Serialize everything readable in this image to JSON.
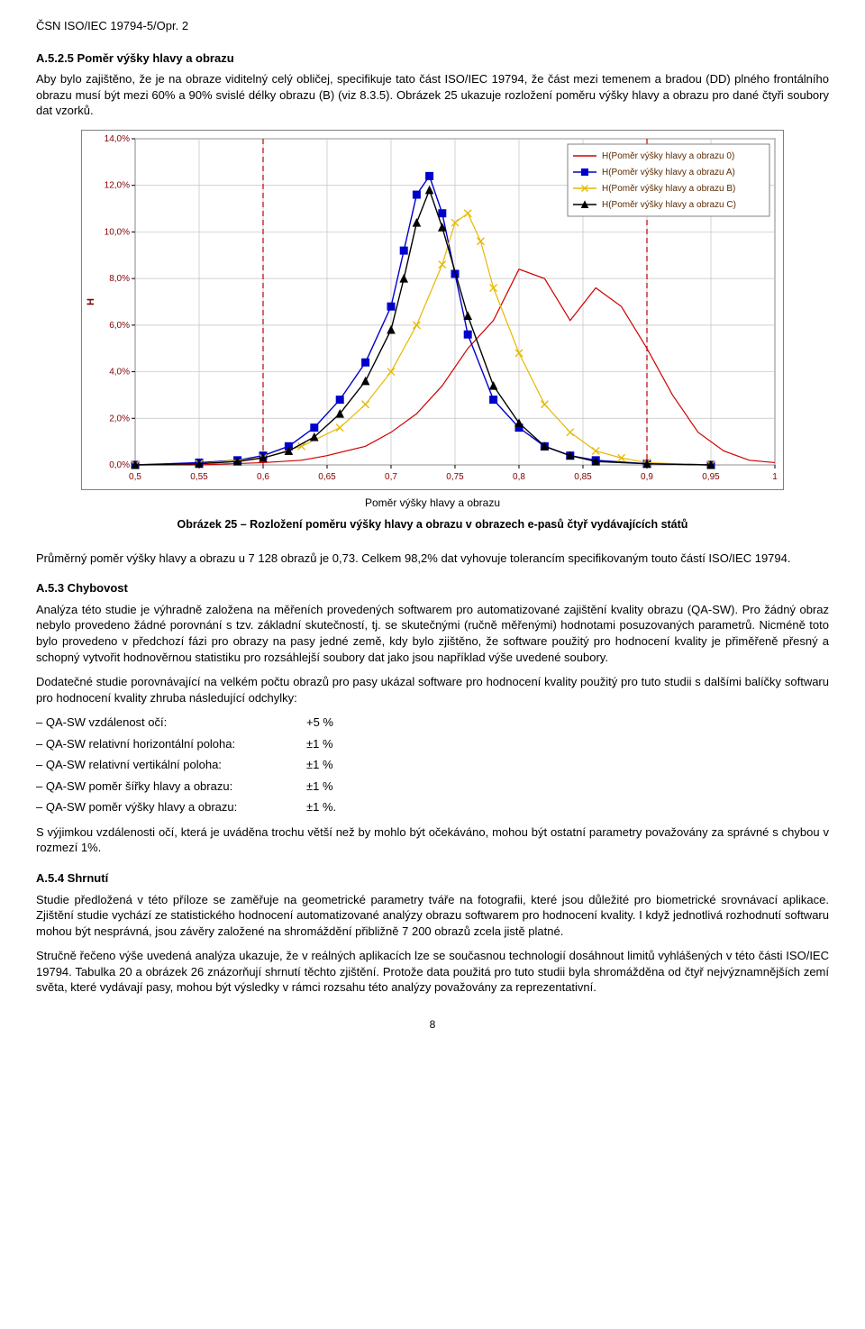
{
  "doc": {
    "header": "ČSN ISO/IEC 19794-5/Opr. 2",
    "page_number": "8"
  },
  "a52": {
    "heading": "A.5.2.5   Poměr výšky hlavy a obrazu",
    "p1": "Aby bylo zajištěno, že je na obraze viditelný celý obličej, specifikuje tato část ISO/IEC 19794, že část mezi temenem a bradou (DD) plného frontálního obrazu musí být mezi 60% a 90% svislé délky obrazu (B) (viz 8.3.5). Obrázek 25 ukazuje rozložení poměru výšky hlavy a obrazu pro dané čtyři soubory dat vzorků."
  },
  "chart": {
    "type": "line",
    "background_color": "#ffffff",
    "outer_border_color": "#808080",
    "grid_color": "#c0c0c0",
    "axis_color": "#000000",
    "xlim": [
      0.5,
      1.0
    ],
    "ylim": [
      0.0,
      14.0
    ],
    "xticks": [
      0.5,
      0.55,
      0.6,
      0.65,
      0.7,
      0.75,
      0.8,
      0.85,
      0.9,
      0.95,
      1.0
    ],
    "xtick_labels": [
      "0,5",
      "0,55",
      "0,6",
      "0,65",
      "0,7",
      "0,75",
      "0,8",
      "0,85",
      "0,9",
      "0,95",
      "1"
    ],
    "yticks": [
      0,
      2,
      4,
      6,
      8,
      10,
      12,
      14
    ],
    "ytick_labels": [
      "0,0%",
      "2,0%",
      "4,0%",
      "6,0%",
      "8,0%",
      "10,0%",
      "12,0%",
      "14,0%"
    ],
    "ylabel": "H",
    "font_size": 10,
    "label_color": "#800000",
    "limit_lines": {
      "color": "#c00000",
      "dash": "6,4",
      "x_positions": [
        0.6,
        0.9
      ]
    },
    "legend": {
      "border_color": "#808080",
      "items": [
        {
          "label": "H(Poměr výšky hlavy a obrazu 0)",
          "color": "#d00000",
          "marker": "none"
        },
        {
          "label": "H(Poměr výšky hlavy a obrazu A)",
          "color": "#0000cc",
          "marker": "square"
        },
        {
          "label": "H(Poměr výšky hlavy a obrazu B)",
          "color": "#e6b800",
          "marker": "x"
        },
        {
          "label": "H(Poměr výšky hlavy a obrazu C)",
          "color": "#000000",
          "marker": "triangle"
        }
      ]
    },
    "series": [
      {
        "name": "0",
        "color": "#d00000",
        "marker": "none",
        "line_width": 1.2,
        "x": [
          0.5,
          0.55,
          0.6,
          0.63,
          0.65,
          0.68,
          0.7,
          0.72,
          0.74,
          0.76,
          0.78,
          0.8,
          0.82,
          0.84,
          0.86,
          0.88,
          0.9,
          0.92,
          0.94,
          0.96,
          0.98,
          1.0
        ],
        "y": [
          0,
          0,
          0.1,
          0.2,
          0.4,
          0.8,
          1.4,
          2.2,
          3.4,
          5.0,
          6.2,
          8.4,
          8.0,
          6.2,
          7.6,
          6.8,
          5.0,
          3.0,
          1.4,
          0.6,
          0.2,
          0.1
        ]
      },
      {
        "name": "A",
        "color": "#0000cc",
        "marker": "square",
        "marker_size": 4,
        "line_width": 1.4,
        "x": [
          0.5,
          0.55,
          0.58,
          0.6,
          0.62,
          0.64,
          0.66,
          0.68,
          0.7,
          0.71,
          0.72,
          0.73,
          0.74,
          0.75,
          0.76,
          0.78,
          0.8,
          0.82,
          0.84,
          0.86,
          0.9,
          0.95
        ],
        "y": [
          0,
          0.1,
          0.2,
          0.4,
          0.8,
          1.6,
          2.8,
          4.4,
          6.8,
          9.2,
          11.6,
          12.4,
          10.8,
          8.2,
          5.6,
          2.8,
          1.6,
          0.8,
          0.4,
          0.2,
          0.05,
          0
        ]
      },
      {
        "name": "B",
        "color": "#e6b800",
        "marker": "x",
        "marker_size": 4,
        "line_width": 1.2,
        "x": [
          0.5,
          0.55,
          0.6,
          0.63,
          0.66,
          0.68,
          0.7,
          0.72,
          0.74,
          0.75,
          0.76,
          0.77,
          0.78,
          0.8,
          0.82,
          0.84,
          0.86,
          0.88,
          0.9,
          0.95
        ],
        "y": [
          0,
          0.05,
          0.3,
          0.8,
          1.6,
          2.6,
          4.0,
          6.0,
          8.6,
          10.4,
          10.8,
          9.6,
          7.6,
          4.8,
          2.6,
          1.4,
          0.6,
          0.3,
          0.1,
          0
        ]
      },
      {
        "name": "C",
        "color": "#000000",
        "marker": "triangle",
        "marker_size": 4,
        "line_width": 1.4,
        "x": [
          0.5,
          0.55,
          0.58,
          0.6,
          0.62,
          0.64,
          0.66,
          0.68,
          0.7,
          0.71,
          0.72,
          0.73,
          0.74,
          0.76,
          0.78,
          0.8,
          0.82,
          0.84,
          0.86,
          0.9,
          0.95
        ],
        "y": [
          0,
          0.05,
          0.15,
          0.3,
          0.6,
          1.2,
          2.2,
          3.6,
          5.8,
          8.0,
          10.4,
          11.8,
          10.2,
          6.4,
          3.4,
          1.8,
          0.8,
          0.4,
          0.15,
          0.05,
          0
        ]
      }
    ],
    "caption_sub": "Poměr výšky hlavy a obrazu",
    "caption_main": "Obrázek 25 – Rozložení poměru výšky hlavy a obrazu v obrazech e-pasů čtyř vydávajících států"
  },
  "a53_pre": {
    "p1": "Průměrný poměr výšky hlavy a obrazu u 7 128 obrazů je 0,73. Celkem 98,2% dat vyhovuje tolerancím specifikovaným touto částí ISO/IEC 19794."
  },
  "a53": {
    "heading": "A.5.3   Chybovost",
    "p1": "Analýza této studie je výhradně založena na měřeních provedených softwarem pro automatizované zajištění kvality obrazu (QA-SW). Pro žádný obraz nebylo provedeno žádné porovnání s tzv. základní skutečností, tj. se skutečnými (ručně měřenými) hodnotami posuzovaných parametrů. Nicméně toto bylo provedeno v předchozí fázi pro obrazy na pasy jedné země, kdy bylo zjištěno, že software použitý pro hodnocení kvality je přiměřeně přesný a schopný vytvořit hodnověrnou statistiku pro rozsáhlejší soubory dat jako jsou například výše uvedené soubory.",
    "p2": "Dodatečné studie porovnávající na velkém počtu obrazů pro pasy ukázal software pro hodnocení kvality použitý pro tuto studii s dalšími balíčky softwaru pro hodnocení kvality zhruba následující odchylky:",
    "deviations": [
      {
        "label": "–  QA-SW vzdálenost očí:",
        "value": "+5 %"
      },
      {
        "label": "–  QA-SW relativní horizontální poloha:",
        "value": "±1 %"
      },
      {
        "label": "–  QA-SW relativní vertikální poloha:",
        "value": "±1 %"
      },
      {
        "label": "–  QA-SW poměr šířky hlavy a obrazu:",
        "value": "±1 %"
      },
      {
        "label": "–  QA-SW poměr výšky hlavy a obrazu:",
        "value": "±1 %."
      }
    ],
    "p3": "S výjimkou vzdálenosti očí, která je uváděna trochu větší než by mohlo být očekáváno, mohou být ostatní parametry považovány za správné s chybou v rozmezí 1%."
  },
  "a54": {
    "heading": "A.5.4   Shrnutí",
    "p1": "Studie předložená v této příloze se zaměřuje na geometrické parametry tváře na fotografii, které jsou důležité pro biometrické srovnávací aplikace. Zjištění studie vychází ze statistického hodnocení automatizované analýzy obrazu softwarem pro hodnocení kvality. I když jednotlivá rozhodnutí softwaru mohou být nesprávná, jsou závěry založené na shromáždění přibližně 7 200 obrazů zcela jistě platné.",
    "p2": "Stručně řečeno výše uvedená analýza ukazuje, že v reálných aplikacích lze se současnou technologií dosáhnout limitů vyhlášených v této části ISO/IEC 19794. Tabulka 20 a obrázek 26 znázorňují shrnutí těchto zjištění. Protože data použitá pro tuto studii byla shromážděna od čtyř nejvýznamnějších zemí světa, které vydávají pasy, mohou být výsledky v rámci rozsahu této analýzy považovány za reprezentativní."
  }
}
